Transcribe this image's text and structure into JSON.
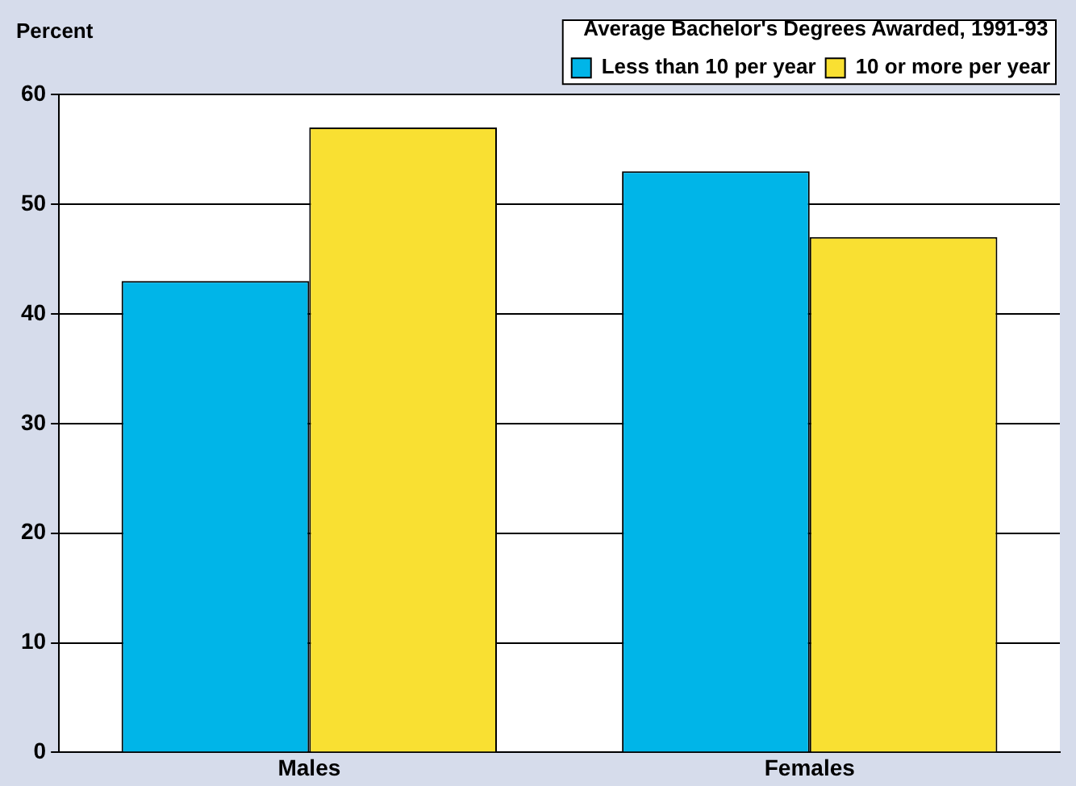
{
  "chart_data": {
    "type": "bar",
    "ylabel": "Percent",
    "legend_title": "Average Bachelor's Degrees Awarded, 1991-93",
    "categories": [
      "Males",
      "Females"
    ],
    "series": [
      {
        "name": "Less than 10 per year",
        "color": "#00b5e8",
        "values": [
          43,
          53
        ]
      },
      {
        "name": "10 or more per year",
        "color": "#f9e032",
        "values": [
          57,
          47
        ]
      }
    ],
    "ylim": [
      0,
      60
    ],
    "yticks": [
      0,
      10,
      20,
      30,
      40,
      50,
      60
    ],
    "grid": "y",
    "legend": "top right"
  }
}
